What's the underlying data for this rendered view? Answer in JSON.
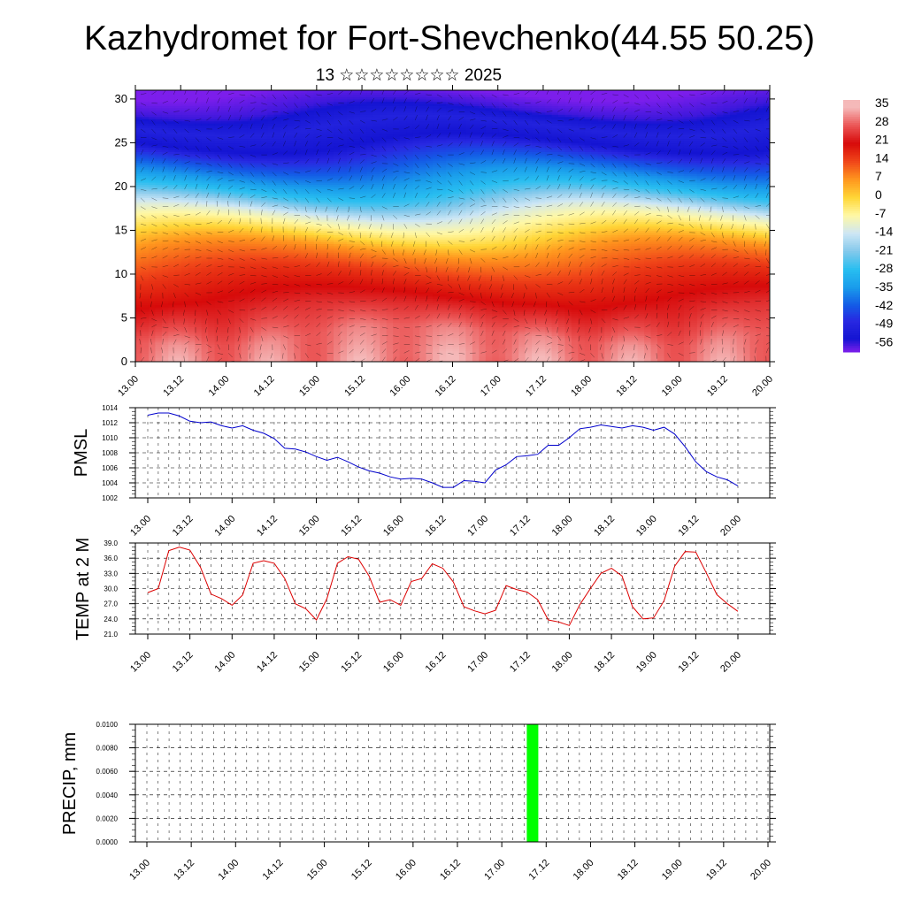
{
  "title": "Kazhydromet for Fort-Shevchenko(44.55 50.25)",
  "subtitle": "13 ☆☆☆☆☆☆☆☆ 2025",
  "time_ticks": [
    "13.00",
    "13.12",
    "14.00",
    "14.12",
    "15.00",
    "15.12",
    "16.00",
    "16.12",
    "17.00",
    "17.12",
    "18.00",
    "18.12",
    "19.00",
    "19.12",
    "20.00"
  ],
  "chart_data": [
    {
      "type": "heatmap",
      "name_hint": "cross-section",
      "yticks": [
        0,
        5,
        10,
        15,
        20,
        25,
        30
      ],
      "ylim": [
        0,
        31
      ],
      "xlim": [
        0,
        168
      ],
      "colorbar_labels": [
        "35",
        "28",
        "21",
        "14",
        "7",
        "0",
        "-7",
        "-14",
        "-21",
        "-28",
        "-35",
        "-42",
        "-49",
        "-56"
      ],
      "profile": [
        {
          "level": 0,
          "value": 32
        },
        {
          "level": 3,
          "value": 30
        },
        {
          "level": 6,
          "value": 24
        },
        {
          "level": 10,
          "value": 16
        },
        {
          "level": 13,
          "value": 7
        },
        {
          "level": 15,
          "value": -3
        },
        {
          "level": 17,
          "value": -12
        },
        {
          "level": 19,
          "value": -25
        },
        {
          "level": 21,
          "value": -35
        },
        {
          "level": 24,
          "value": -48
        },
        {
          "level": 25,
          "value": -55
        },
        {
          "level": 27,
          "value": -50
        },
        {
          "level": 29,
          "value": -57
        },
        {
          "level": 31,
          "value": -60
        }
      ]
    },
    {
      "type": "line",
      "ylabel": "PMSL",
      "ylim": [
        1002,
        1014
      ],
      "yticks": [
        "1014",
        "1012",
        "1010",
        "1008",
        "1006",
        "1004",
        "1002"
      ],
      "x_step_hours": 3,
      "color": "#0000cc",
      "values": [
        1013.0,
        1013.3,
        1013.3,
        1012.9,
        1012.2,
        1012.0,
        1012.1,
        1011.6,
        1011.3,
        1011.6,
        1011.0,
        1010.6,
        1009.9,
        1008.6,
        1008.5,
        1008.1,
        1007.5,
        1007.0,
        1007.4,
        1006.8,
        1006.1,
        1005.6,
        1005.3,
        1004.8,
        1004.5,
        1004.6,
        1004.5,
        1004.0,
        1003.4,
        1003.4,
        1004.3,
        1004.2,
        1004.0,
        1005.7,
        1006.4,
        1007.5,
        1007.6,
        1007.8,
        1009.0,
        1009.0,
        1010.0,
        1011.2,
        1011.4,
        1011.7,
        1011.5,
        1011.3,
        1011.6,
        1011.4,
        1011.0,
        1011.4,
        1010.5,
        1008.8,
        1006.8,
        1005.5,
        1004.8,
        1004.4,
        1003.6
      ]
    },
    {
      "type": "line",
      "ylabel": "TEMP at 2 M",
      "ylim": [
        21,
        39
      ],
      "yticks": [
        "39.0",
        "36.0",
        "33.0",
        "30.0",
        "27.0",
        "24.0",
        "21.0"
      ],
      "x_step_hours": 3,
      "color": "#dd0000",
      "values": [
        29.2,
        30.0,
        37.5,
        38.2,
        37.6,
        34.2,
        28.9,
        28.0,
        26.7,
        28.7,
        35.0,
        35.5,
        35.0,
        32.0,
        27.0,
        26.0,
        23.8,
        28.0,
        35.0,
        36.3,
        35.8,
        32.5,
        27.3,
        27.8,
        26.7,
        31.4,
        32.0,
        34.9,
        34.0,
        31.3,
        26.4,
        25.6,
        25.0,
        25.7,
        30.6,
        29.8,
        29.3,
        27.8,
        23.8,
        23.4,
        22.7,
        26.8,
        30.0,
        33.0,
        34.0,
        32.5,
        26.4,
        24.0,
        24.2,
        27.6,
        34.4,
        37.3,
        37.2,
        33.1,
        28.8,
        27.0,
        25.5
      ]
    },
    {
      "type": "bar",
      "ylabel": "PRECIP, mm",
      "ylim": [
        0,
        0.01
      ],
      "yticks": [
        "0.0100",
        "0.0080",
        "0.0060",
        "0.0040",
        "0.0020",
        "0.0000"
      ],
      "color": "#00ff00",
      "bars": [
        {
          "hour": 103,
          "value": 0.01
        }
      ]
    }
  ]
}
